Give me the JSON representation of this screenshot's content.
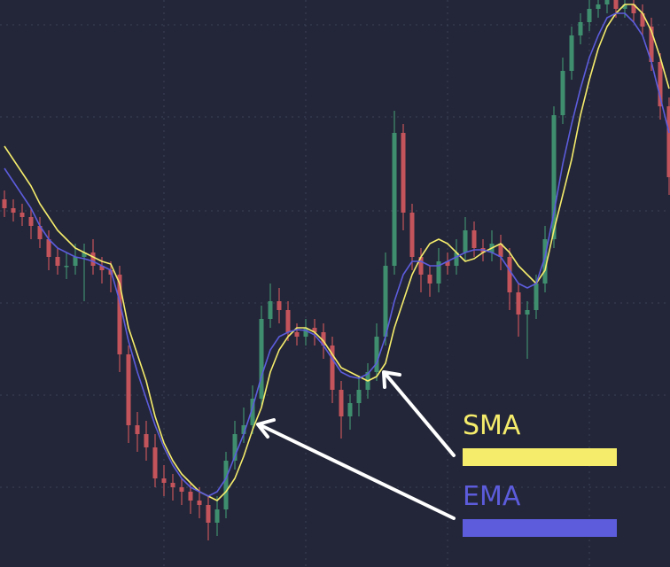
{
  "chart_data": {
    "type": "candlestick",
    "ylim": [
      0,
      64
    ],
    "grid": true,
    "up_color": "#3f8f6f",
    "down_color": "#c4545b",
    "open": [
      41.5,
      40.5,
      40,
      39.5,
      38.5,
      37,
      35,
      34,
      34,
      35,
      35.5,
      34,
      33.5,
      33,
      24,
      16,
      15,
      13.5,
      10,
      9.5,
      9,
      8.5,
      7.5,
      7,
      5,
      6.5,
      12,
      15,
      16,
      19,
      28,
      30,
      29,
      26.5,
      26,
      27,
      26.5,
      25,
      20,
      17,
      18.5,
      20,
      22,
      26,
      34,
      49,
      40,
      35,
      33,
      32,
      34.5,
      34,
      35.5,
      38,
      36,
      35.5,
      36.5,
      35,
      31,
      28.5,
      29,
      32,
      37,
      51,
      56,
      60,
      61.5,
      63,
      63.5,
      64,
      63,
      63.5,
      62.5,
      61,
      57,
      52
    ],
    "high": [
      42.5,
      41.5,
      41,
      40.5,
      39.5,
      38,
      36,
      35.5,
      36.5,
      36.5,
      37,
      35,
      34.5,
      34,
      25,
      17.5,
      16.5,
      15,
      11.5,
      10.5,
      10,
      9.5,
      9,
      8,
      8,
      13,
      16.5,
      18,
      20.5,
      29.5,
      32,
      31.5,
      30,
      27.5,
      28,
      28,
      27.5,
      26,
      21,
      19.5,
      21.5,
      23,
      27.5,
      35.5,
      51.5,
      50,
      41,
      36,
      34,
      36,
      35.5,
      37,
      39.5,
      39,
      37,
      38,
      37.5,
      36,
      32,
      30,
      33,
      38.5,
      52,
      57.5,
      61,
      62.5,
      64,
      64.5,
      65,
      65,
      64.5,
      64,
      63.5,
      62,
      58,
      53
    ],
    "low": [
      39.5,
      39,
      38.5,
      37,
      36,
      33.5,
      33,
      32.5,
      33,
      30,
      33,
      32,
      31,
      22,
      14,
      13,
      12,
      9,
      8,
      7.5,
      7,
      6,
      5.5,
      3,
      3.5,
      5.5,
      11,
      14,
      15,
      18,
      27,
      27.5,
      25.5,
      25,
      25,
      25,
      23.5,
      18.5,
      14.5,
      15.5,
      17,
      19,
      21,
      25,
      33,
      38,
      33.5,
      31,
      30.5,
      31,
      33,
      33,
      34.5,
      35,
      34.5,
      34.5,
      33.5,
      29,
      26,
      23.5,
      28,
      31,
      36,
      50,
      55,
      59,
      60.5,
      62,
      62.5,
      62,
      62,
      61.5,
      60,
      56,
      50.5,
      42
    ],
    "close": [
      40.5,
      40,
      39.5,
      38.5,
      37,
      35,
      34,
      34,
      35,
      35.5,
      34,
      33.5,
      33,
      24,
      16,
      15,
      13.5,
      10,
      9.5,
      9,
      8.5,
      7.5,
      7,
      5,
      6.5,
      12,
      15,
      16,
      19,
      28,
      30,
      29,
      26.5,
      26,
      27,
      26.5,
      25,
      20,
      17,
      18.5,
      20,
      22,
      26,
      34,
      49,
      40,
      35,
      33,
      32,
      34.5,
      34,
      35.5,
      38,
      36,
      35.5,
      36.5,
      35,
      31,
      28.5,
      29,
      32,
      37,
      51,
      56,
      60,
      61.5,
      63,
      63.5,
      64,
      63,
      63.5,
      62.5,
      61,
      57,
      52,
      44
    ],
    "series": [
      {
        "name": "SMA",
        "color": "#f5ec6c",
        "values": [
          47.5,
          46,
          44.5,
          43,
          41,
          39.5,
          38,
          37,
          36,
          35.5,
          35,
          34.5,
          34.2,
          32,
          27,
          24,
          21,
          17,
          14,
          12,
          10.5,
          9.5,
          8.5,
          8,
          7.5,
          8.5,
          10,
          12.5,
          15.5,
          18,
          22,
          24.5,
          26,
          27,
          27,
          26.5,
          25.5,
          24,
          22.5,
          22,
          21.5,
          21,
          21.5,
          23,
          27,
          30,
          33,
          35,
          36.5,
          37,
          36.5,
          35.5,
          34.5,
          34.8,
          35.5,
          36,
          36.5,
          35.5,
          34,
          33,
          32,
          33.5,
          38,
          42,
          46,
          51,
          55,
          58.5,
          61,
          62.5,
          63.5,
          63.5,
          62.5,
          60.5,
          57.5,
          54
        ]
      },
      {
        "name": "EMA",
        "color": "#5c5cdc",
        "values": [
          45,
          43.5,
          42,
          40.5,
          38.5,
          37,
          36,
          35.5,
          35,
          34.8,
          34.5,
          34,
          33.5,
          30,
          25.5,
          22,
          19,
          16,
          13.5,
          11.5,
          10,
          9,
          8.5,
          8,
          8.5,
          10,
          12.5,
          15,
          18,
          21.5,
          24.5,
          26,
          26.5,
          26.8,
          26.7,
          26.2,
          25,
          23.5,
          22,
          21.5,
          21.3,
          21.8,
          23,
          26,
          30,
          33,
          34.5,
          34.5,
          34,
          34,
          34.5,
          35,
          35.5,
          35.8,
          35.8,
          35.5,
          35,
          33.5,
          32,
          31.5,
          32,
          35,
          40,
          45.5,
          50,
          54,
          57.5,
          60,
          62,
          62.5,
          62.5,
          61.5,
          60,
          57,
          53,
          49
        ]
      }
    ]
  }
}
